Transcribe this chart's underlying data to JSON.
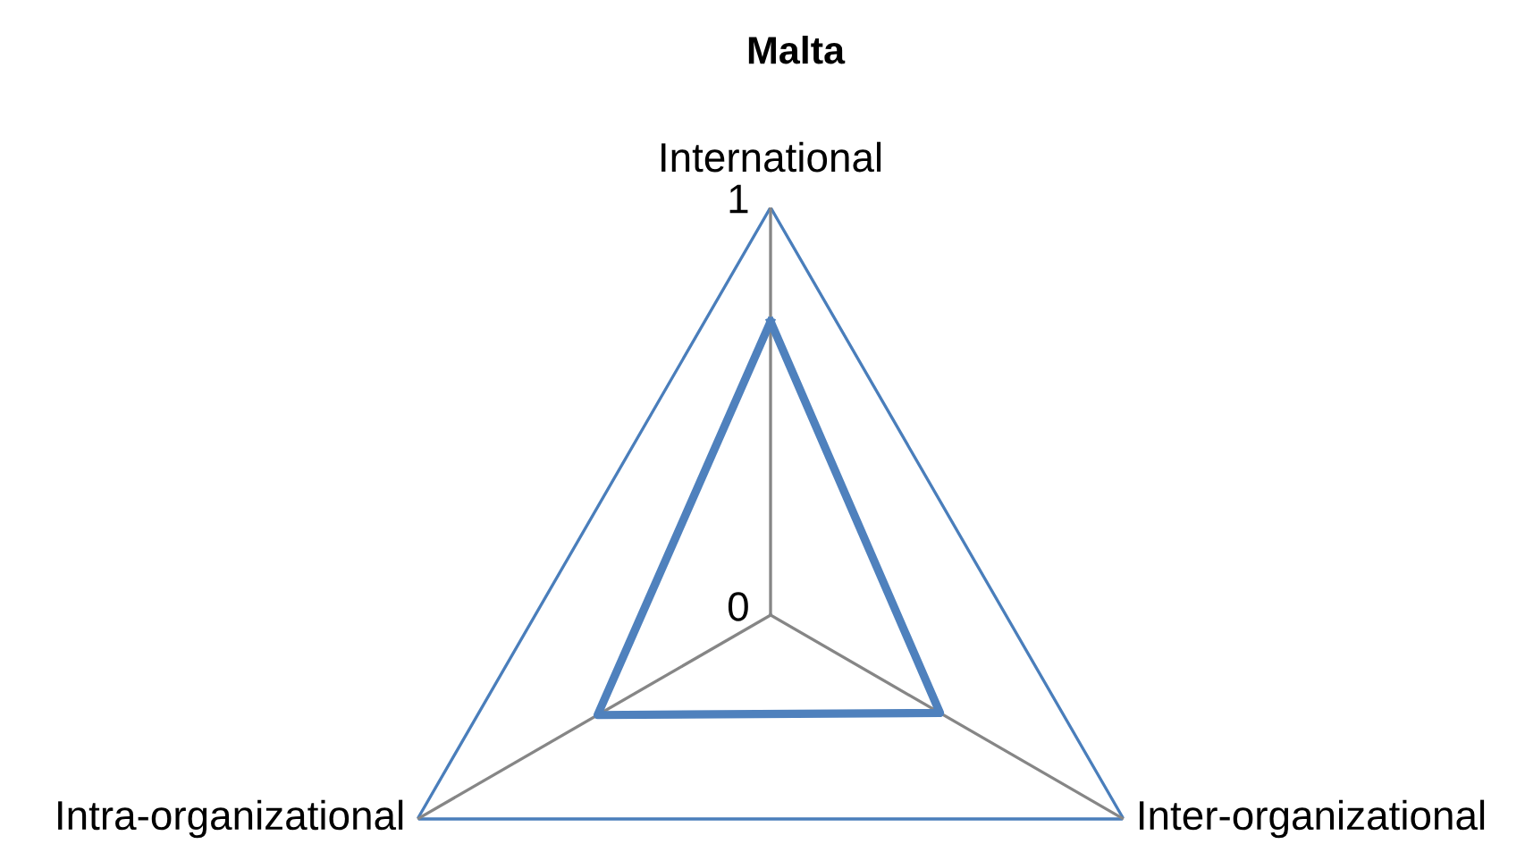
{
  "chart_data": {
    "type": "radar",
    "title": "Malta",
    "categories": [
      "International",
      "Inter-organizational",
      "Intra-organizational"
    ],
    "series": [
      {
        "color": "#4f81bd",
        "values": [
          0.72,
          0.48,
          0.49
        ]
      }
    ],
    "ylim": [
      0,
      1
    ],
    "yticks": [
      0,
      1
    ],
    "grid": true
  }
}
